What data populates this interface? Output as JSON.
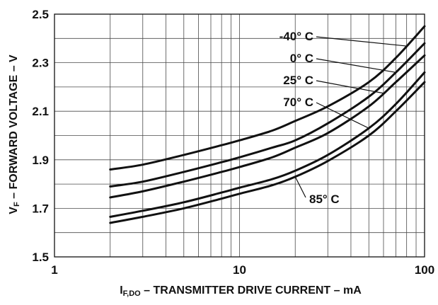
{
  "chart_data": {
    "type": "line",
    "xlabel": {
      "main": "I",
      "sub": "F,DO",
      "rest": " – TRANSMITTER DRIVE CURRENT – mA"
    },
    "ylabel": {
      "main": "V",
      "sub": "F",
      "rest": " – FORWARD VOLTAGE – V"
    },
    "xscale": "log",
    "xlim": [
      1,
      100
    ],
    "ylim": [
      1.5,
      2.5
    ],
    "xticks": [
      "1",
      "10",
      "100"
    ],
    "yticks": [
      "1.5",
      "1.7",
      "1.9",
      "2.1",
      "2.3",
      "2.5"
    ],
    "grid": true,
    "series": [
      {
        "name": "-40° C",
        "x": [
          2,
          3,
          5,
          8,
          10,
          15,
          20,
          30,
          50,
          70,
          100
        ],
        "y": [
          1.86,
          1.88,
          1.92,
          1.96,
          1.98,
          2.02,
          2.06,
          2.12,
          2.22,
          2.32,
          2.45
        ]
      },
      {
        "name": "0° C",
        "x": [
          2,
          3,
          5,
          8,
          10,
          15,
          20,
          30,
          50,
          70,
          100
        ],
        "y": [
          1.79,
          1.81,
          1.85,
          1.89,
          1.91,
          1.95,
          1.98,
          2.05,
          2.16,
          2.26,
          2.38
        ]
      },
      {
        "name": "25° C",
        "x": [
          2,
          3,
          5,
          8,
          10,
          15,
          20,
          30,
          50,
          70,
          100
        ],
        "y": [
          1.745,
          1.77,
          1.81,
          1.85,
          1.87,
          1.91,
          1.95,
          2.01,
          2.12,
          2.22,
          2.33
        ]
      },
      {
        "name": "70° C",
        "x": [
          2,
          3,
          5,
          8,
          10,
          15,
          20,
          30,
          50,
          70,
          100
        ],
        "y": [
          1.665,
          1.69,
          1.725,
          1.765,
          1.785,
          1.82,
          1.855,
          1.92,
          2.03,
          2.13,
          2.26
        ]
      },
      {
        "name": "85° C",
        "x": [
          2,
          3,
          5,
          8,
          10,
          15,
          20,
          30,
          50,
          70,
          100
        ],
        "y": [
          1.64,
          1.665,
          1.7,
          1.74,
          1.76,
          1.795,
          1.83,
          1.895,
          2.0,
          2.1,
          2.22
        ]
      }
    ]
  }
}
